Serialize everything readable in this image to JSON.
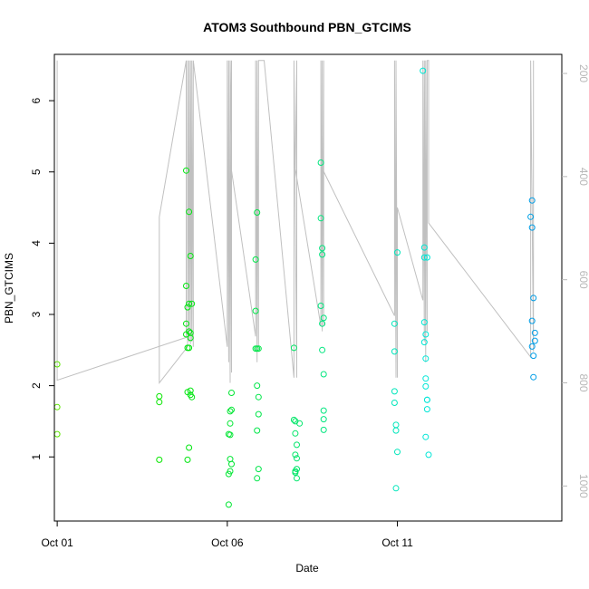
{
  "chart_data": {
    "type": "scatter",
    "title": "ATOM3 Southbound PBN_GTCIMS",
    "xlabel": "Date",
    "ylabel": "PBN_GTCIMS",
    "x_unit": "date",
    "xlim": [
      "2016-09-30T22:00",
      "2016-10-15T20:00"
    ],
    "ylim": [
      0.1,
      6.65
    ],
    "x_ticks": [
      {
        "value": "2016-10-01T00:00",
        "label": "Oct 01"
      },
      {
        "value": "2016-10-06T00:00",
        "label": "Oct 06"
      },
      {
        "value": "2016-10-11T00:00",
        "label": "Oct 11"
      }
    ],
    "y_ticks": [
      1,
      2,
      3,
      4,
      5,
      6
    ],
    "y2_ticks": [
      200,
      400,
      600,
      800,
      1000
    ],
    "y2_lim": [
      163,
      1068
    ],
    "y2_reversed": true,
    "grid": false,
    "legend": "none",
    "colors": {
      "axis": "#000000",
      "secondary_axis": "#b8b8b8",
      "track_line": "#c0c0c0"
    },
    "point_style": "open-circle",
    "color_scale": "green-to-blue by time",
    "series": [
      {
        "points": [
          [
            "2016-10-01T00:00",
            2.3
          ],
          [
            "2016-10-01T00:00",
            1.7
          ],
          [
            "2016-10-01T00:00",
            1.32
          ],
          [
            "2016-10-04T00:00",
            1.85
          ],
          [
            "2016-10-04T00:00",
            1.77
          ],
          [
            "2016-10-04T00:00",
            0.96
          ],
          [
            "2016-10-04T19:00",
            5.02
          ],
          [
            "2016-10-04T21:00",
            4.44
          ],
          [
            "2016-10-04T22:00",
            3.82
          ],
          [
            "2016-10-04T19:00",
            3.4
          ],
          [
            "2016-10-04T21:00",
            3.15
          ],
          [
            "2016-10-04T23:00",
            3.15
          ],
          [
            "2016-10-04T20:00",
            3.1
          ],
          [
            "2016-10-04T19:00",
            2.87
          ],
          [
            "2016-10-04T21:00",
            2.76
          ],
          [
            "2016-10-04T19:00",
            2.72
          ],
          [
            "2016-10-04T22:00",
            2.74
          ],
          [
            "2016-10-04T22:00",
            2.67
          ],
          [
            "2016-10-04T20:00",
            2.53
          ],
          [
            "2016-10-04T21:00",
            2.53
          ],
          [
            "2016-10-04T20:00",
            1.91
          ],
          [
            "2016-10-04T22:00",
            1.93
          ],
          [
            "2016-10-04T22:00",
            1.87
          ],
          [
            "2016-10-04T23:00",
            1.84
          ],
          [
            "2016-10-04T21:00",
            1.13
          ],
          [
            "2016-10-04T20:00",
            0.96
          ],
          [
            "2016-10-06T03:00",
            1.9
          ],
          [
            "2016-10-06T03:00",
            1.66
          ],
          [
            "2016-10-06T02:00",
            1.64
          ],
          [
            "2016-10-06T02:00",
            1.47
          ],
          [
            "2016-10-06T01:00",
            1.32
          ],
          [
            "2016-10-06T02:00",
            1.31
          ],
          [
            "2016-10-06T02:00",
            0.97
          ],
          [
            "2016-10-06T03:00",
            0.9
          ],
          [
            "2016-10-06T02:00",
            0.8
          ],
          [
            "2016-10-06T01:00",
            0.76
          ],
          [
            "2016-10-06T01:00",
            0.33
          ],
          [
            "2016-10-06T21:00",
            4.43
          ],
          [
            "2016-10-06T20:00",
            3.77
          ],
          [
            "2016-10-06T20:00",
            3.05
          ],
          [
            "2016-10-06T20:00",
            2.52
          ],
          [
            "2016-10-06T21:00",
            2.52
          ],
          [
            "2016-10-06T22:00",
            2.52
          ],
          [
            "2016-10-06T21:00",
            2.0
          ],
          [
            "2016-10-06T22:00",
            1.84
          ],
          [
            "2016-10-06T22:00",
            1.6
          ],
          [
            "2016-10-06T21:00",
            1.37
          ],
          [
            "2016-10-06T22:00",
            0.83
          ],
          [
            "2016-10-06T21:00",
            0.7
          ],
          [
            "2016-10-07T23:00",
            2.53
          ],
          [
            "2016-10-07T23:00",
            1.52
          ],
          [
            "2016-10-08T00:00",
            1.5
          ],
          [
            "2016-10-08T03:00",
            1.47
          ],
          [
            "2016-10-08T00:00",
            1.33
          ],
          [
            "2016-10-08T01:00",
            1.17
          ],
          [
            "2016-10-08T00:00",
            1.03
          ],
          [
            "2016-10-08T01:00",
            0.98
          ],
          [
            "2016-10-08T01:00",
            0.83
          ],
          [
            "2016-10-08T00:00",
            0.8
          ],
          [
            "2016-10-08T00:00",
            0.78
          ],
          [
            "2016-10-08T01:00",
            0.7
          ],
          [
            "2016-10-08T18:00",
            5.13
          ],
          [
            "2016-10-08T18:00",
            4.35
          ],
          [
            "2016-10-08T19:00",
            3.93
          ],
          [
            "2016-10-08T19:00",
            3.84
          ],
          [
            "2016-10-08T18:00",
            3.12
          ],
          [
            "2016-10-08T20:00",
            2.95
          ],
          [
            "2016-10-08T19:00",
            2.87
          ],
          [
            "2016-10-08T19:00",
            2.5
          ],
          [
            "2016-10-08T20:00",
            2.16
          ],
          [
            "2016-10-08T20:00",
            1.65
          ],
          [
            "2016-10-08T20:00",
            1.53
          ],
          [
            "2016-10-08T20:00",
            1.38
          ],
          [
            "2016-10-10T22:00",
            2.87
          ],
          [
            "2016-10-10T22:00",
            2.48
          ],
          [
            "2016-10-10T22:00",
            1.92
          ],
          [
            "2016-10-10T22:00",
            1.76
          ],
          [
            "2016-10-11T00:00",
            3.87
          ],
          [
            "2016-10-10T23:00",
            1.45
          ],
          [
            "2016-10-10T23:00",
            1.37
          ],
          [
            "2016-10-11T00:00",
            1.07
          ],
          [
            "2016-10-10T23:00",
            0.56
          ],
          [
            "2016-10-11T18:00",
            6.42
          ],
          [
            "2016-10-11T19:00",
            3.94
          ],
          [
            "2016-10-11T19:00",
            3.8
          ],
          [
            "2016-10-11T21:00",
            3.8
          ],
          [
            "2016-10-11T19:00",
            2.89
          ],
          [
            "2016-10-11T20:00",
            2.72
          ],
          [
            "2016-10-11T19:00",
            2.61
          ],
          [
            "2016-10-11T20:00",
            2.38
          ],
          [
            "2016-10-11T20:00",
            2.1
          ],
          [
            "2016-10-11T20:00",
            1.99
          ],
          [
            "2016-10-11T21:00",
            1.8
          ],
          [
            "2016-10-11T21:00",
            1.8
          ],
          [
            "2016-10-11T21:00",
            1.67
          ],
          [
            "2016-10-11T20:00",
            1.28
          ],
          [
            "2016-10-11T22:00",
            1.03
          ],
          [
            "2016-10-14T23:00",
            4.6
          ],
          [
            "2016-10-14T22:00",
            4.37
          ],
          [
            "2016-10-14T23:00",
            4.22
          ],
          [
            "2016-10-15T00:00",
            3.23
          ],
          [
            "2016-10-14T23:00",
            2.91
          ],
          [
            "2016-10-15T01:00",
            2.74
          ],
          [
            "2016-10-15T01:00",
            2.63
          ],
          [
            "2016-10-14T23:00",
            2.55
          ],
          [
            "2016-10-15T00:00",
            2.42
          ],
          [
            "2016-10-15T00:00",
            2.12
          ]
        ]
      }
    ]
  }
}
